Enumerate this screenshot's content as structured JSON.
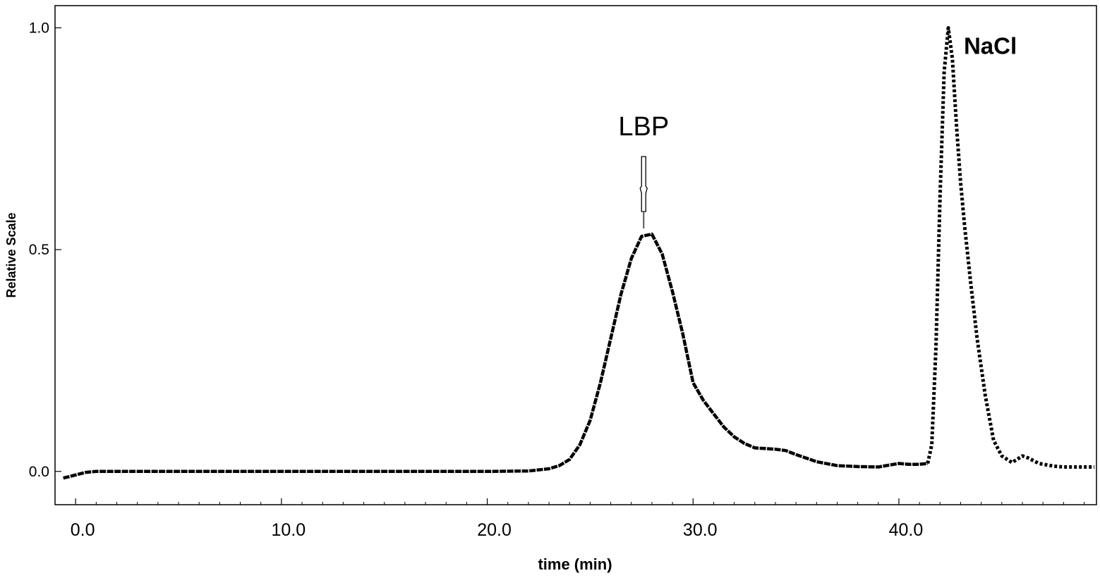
{
  "chart_data": {
    "type": "line",
    "title": "",
    "xlabel": "time (min)",
    "ylabel": "Relative Scale",
    "xlim": [
      -1.0,
      49.6
    ],
    "ylim": [
      -0.075,
      1.05
    ],
    "x_ticks": [
      0,
      10,
      20,
      30,
      40
    ],
    "x_tick_labels": [
      "0.0",
      "10.0",
      "20.0",
      "30.0",
      "40.0"
    ],
    "y_ticks": [
      0,
      0.5,
      1.0
    ],
    "y_tick_labels": [
      "0.0",
      "0.5",
      "1.0"
    ],
    "grid": false,
    "legend": "none",
    "line_color": "#000000",
    "series": [
      {
        "style": "solid",
        "x": [
          -0.6,
          0.0,
          0.5,
          1.0,
          5.0,
          10.0,
          15.0,
          20.0,
          22.0,
          23.0,
          23.5,
          24.0,
          24.5,
          25.0,
          25.5,
          26.0,
          26.5,
          27.0,
          27.5,
          28.0,
          28.5,
          29.0,
          29.5,
          30.0,
          30.5,
          31.0,
          31.5,
          32.0,
          32.5,
          33.0,
          34.0,
          34.5,
          35.0,
          36.0,
          37.0,
          38.0,
          39.0,
          40.0,
          40.5,
          41.0,
          41.4
        ],
        "y": [
          -0.015,
          -0.008,
          -0.002,
          0.0,
          0.0,
          0.0,
          0.0,
          0.0,
          0.001,
          0.006,
          0.013,
          0.027,
          0.06,
          0.115,
          0.2,
          0.3,
          0.4,
          0.48,
          0.53,
          0.535,
          0.49,
          0.405,
          0.31,
          0.2,
          0.16,
          0.13,
          0.1,
          0.078,
          0.063,
          0.053,
          0.05,
          0.047,
          0.038,
          0.022,
          0.013,
          0.011,
          0.01,
          0.018,
          0.016,
          0.016,
          0.018
        ]
      },
      {
        "style": "dotted",
        "x": [
          41.4,
          41.6,
          41.8,
          42.0,
          42.2,
          42.4,
          42.6,
          42.8,
          43.0,
          43.2,
          43.5,
          43.8,
          44.2,
          44.6,
          45.0,
          45.5,
          46.0,
          46.3,
          46.8,
          47.5,
          48.0,
          49.5
        ],
        "y": [
          0.018,
          0.06,
          0.28,
          0.62,
          0.9,
          1.0,
          0.93,
          0.78,
          0.65,
          0.55,
          0.42,
          0.3,
          0.17,
          0.07,
          0.035,
          0.02,
          0.035,
          0.03,
          0.018,
          0.012,
          0.01,
          0.01
        ]
      }
    ],
    "annotations": [
      {
        "text": "LBP",
        "x": 27.6,
        "y": 0.535,
        "marker": "arrow"
      },
      {
        "text": "NaCl",
        "x": 42.4,
        "y": 1.0
      }
    ]
  }
}
